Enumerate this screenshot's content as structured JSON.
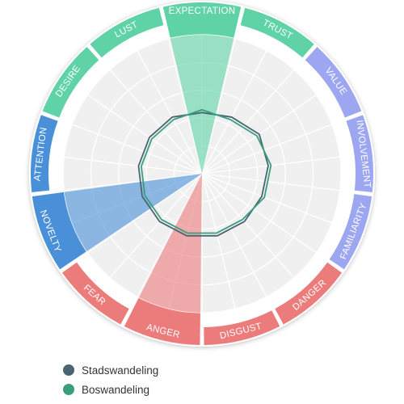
{
  "chart_data": {
    "type": "radar",
    "title": "",
    "categories": [
      "EXPECTATION",
      "TRUST",
      "VALUE",
      "INVOLVEMENT",
      "FAMILIARITY",
      "DANGER",
      "DISGUST",
      "ANGER",
      "FEAR",
      "NOVELTY",
      "ATTENTION",
      "DESIRE",
      "LUST"
    ],
    "category_colors": {
      "EXPECTATION": "#5fd3a6",
      "TRUST": "#5fd3a6",
      "DESIRE": "#5fd3a6",
      "LUST": "#5fd3a6",
      "VALUE": "#9da6f0",
      "INVOLVEMENT": "#9da6f0",
      "FAMILIARITY": "#9da6f0",
      "DANGER": "#ec7c7c",
      "DISGUST": "#ec7c7c",
      "ANGER": "#ec7c7c",
      "FEAR": "#ec7c7c",
      "NOVELTY": "#4a90d9",
      "ATTENTION": "#4a90d9"
    },
    "highlighted": [
      {
        "category": "EXPECTATION",
        "value": 5,
        "color": "#5fd3a6"
      },
      {
        "category": "ANGER",
        "value": 5,
        "color": "#ec7c7c"
      },
      {
        "category": "NOVELTY",
        "value": 5,
        "color": "#4a90d9"
      }
    ],
    "rmax": 5,
    "rings": 5,
    "grid": true,
    "series": [
      {
        "name": "Stadswandeling",
        "color": "#4a6572",
        "values": [
          2.2,
          2.3,
          2.5,
          2.4,
          2.3,
          2.3,
          2.3,
          2.3,
          2.3,
          2.3,
          2.3,
          2.3,
          2.3
        ]
      },
      {
        "name": "Boswandeling",
        "color": "#3a9e7e",
        "values": [
          2.3,
          2.2,
          2.4,
          2.5,
          2.4,
          2.2,
          2.2,
          2.2,
          2.2,
          2.2,
          2.2,
          2.2,
          2.2
        ]
      }
    ],
    "legend_position": "bottom-left"
  }
}
